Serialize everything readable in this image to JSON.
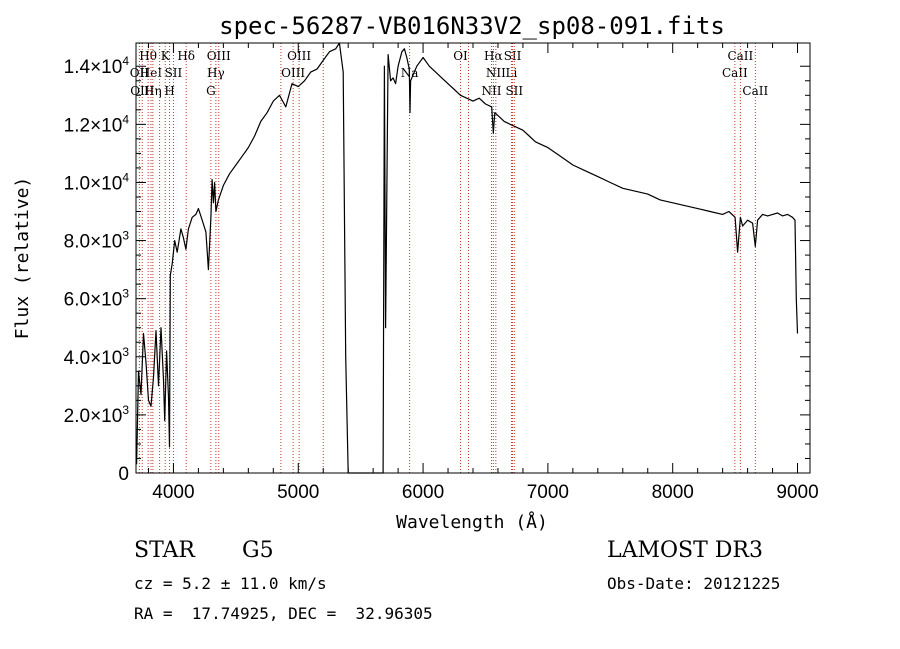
{
  "chart_data": {
    "type": "line",
    "title": "spec-56287-VB016N33V2_sp08-091.fits",
    "xlabel": "Wavelength (Å)",
    "ylabel": "Flux (relative)",
    "xlim": [
      3700,
      9100
    ],
    "ylim": [
      0,
      14800
    ],
    "xticks": [
      {
        "value": 4000,
        "label": "4000"
      },
      {
        "value": 5000,
        "label": "5000"
      },
      {
        "value": 6000,
        "label": "6000"
      },
      {
        "value": 7000,
        "label": "7000"
      },
      {
        "value": 8000,
        "label": "8000"
      },
      {
        "value": 9000,
        "label": "9000"
      }
    ],
    "yticks": [
      {
        "value": 0,
        "mant": "0",
        "exp": ""
      },
      {
        "value": 2000,
        "mant": "2.0×10",
        "exp": "3"
      },
      {
        "value": 4000,
        "mant": "4.0×10",
        "exp": "3"
      },
      {
        "value": 6000,
        "mant": "6.0×10",
        "exp": "3"
      },
      {
        "value": 8000,
        "mant": "8.0×10",
        "exp": "3"
      },
      {
        "value": 10000,
        "mant": "1.0×10",
        "exp": "4"
      },
      {
        "value": 12000,
        "mant": "1.2×10",
        "exp": "4"
      },
      {
        "value": 14000,
        "mant": "1.4×10",
        "exp": "4"
      }
    ],
    "series": [
      {
        "name": "flux",
        "x": [
          3705,
          3720,
          3740,
          3760,
          3780,
          3800,
          3820,
          3840,
          3860,
          3880,
          3900,
          3920,
          3930,
          3945,
          3960,
          3968,
          3975,
          3990,
          4010,
          4030,
          4060,
          4080,
          4100,
          4120,
          4150,
          4180,
          4200,
          4230,
          4260,
          4280,
          4300,
          4310,
          4320,
          4330,
          4340,
          4360,
          4400,
          4450,
          4500,
          4550,
          4600,
          4650,
          4700,
          4750,
          4800,
          4850,
          4900,
          4950,
          5000,
          5050,
          5100,
          5150,
          5200,
          5250,
          5300,
          5330,
          5360,
          5380,
          5400,
          5500,
          5600,
          5680,
          5690,
          5700,
          5720,
          5740,
          5760,
          5780,
          5800,
          5830,
          5850,
          5870,
          5890,
          5895,
          5900,
          5950,
          6000,
          6050,
          6100,
          6150,
          6200,
          6250,
          6300,
          6350,
          6400,
          6450,
          6500,
          6550,
          6563,
          6575,
          6600,
          6650,
          6700,
          6750,
          6800,
          6850,
          6900,
          6950,
          7000,
          7100,
          7200,
          7300,
          7400,
          7500,
          7600,
          7700,
          7800,
          7900,
          8000,
          8100,
          8200,
          8300,
          8400,
          8450,
          8500,
          8520,
          8542,
          8560,
          8580,
          8600,
          8640,
          8662,
          8680,
          8720,
          8760,
          8800,
          8840,
          8880,
          8920,
          8960,
          8980,
          8990,
          9000
        ],
        "y": [
          300,
          3500,
          2700,
          4800,
          3800,
          2500,
          2300,
          3300,
          4900,
          3000,
          5000,
          3200,
          1800,
          4200,
          2600,
          900,
          6800,
          7200,
          8000,
          7600,
          8400,
          8100,
          7700,
          8400,
          8800,
          8900,
          9100,
          8700,
          8300,
          7000,
          8800,
          10100,
          9300,
          10000,
          9000,
          9400,
          9900,
          10300,
          10600,
          10900,
          11200,
          11600,
          12100,
          12400,
          12800,
          13000,
          12600,
          13400,
          13300,
          13500,
          13800,
          13900,
          14200,
          14500,
          14600,
          14900,
          13800,
          4000,
          0,
          0,
          0,
          0,
          14000,
          5000,
          14400,
          13500,
          13600,
          13400,
          14000,
          14500,
          14600,
          14300,
          13900,
          12400,
          13500,
          14000,
          14300,
          14000,
          13800,
          13600,
          13400,
          13200,
          13000,
          12900,
          12800,
          12900,
          12700,
          12600,
          11700,
          12400,
          12300,
          12100,
          12000,
          11900,
          11800,
          11600,
          11400,
          11300,
          11200,
          10900,
          10600,
          10400,
          10200,
          10000,
          9800,
          9700,
          9600,
          9400,
          9300,
          9200,
          9100,
          9000,
          8900,
          9000,
          8800,
          7600,
          8800,
          8500,
          8600,
          8700,
          8600,
          7800,
          8700,
          8900,
          8850,
          8900,
          8950,
          8850,
          8900,
          8800,
          8700,
          6000,
          4800
        ]
      }
    ],
    "line_markers": [
      {
        "wavelength": 3727,
        "label": "OII",
        "row": 1
      },
      {
        "wavelength": 3750,
        "label": "OIII",
        "row": 2
      },
      {
        "wavelength": 3797,
        "label": "Hθ",
        "row": 0
      },
      {
        "wavelength": 3820,
        "label": "HeI",
        "row": 1
      },
      {
        "wavelength": 3835,
        "label": "Hη",
        "row": 2
      },
      {
        "wavelength": 3889,
        "label": "",
        "row": 0
      },
      {
        "wavelength": 3934,
        "label": "K",
        "row": 0
      },
      {
        "wavelength": 3969,
        "label": "H",
        "row": 2
      },
      {
        "wavelength": 4000,
        "label": "SII",
        "row": 1
      },
      {
        "wavelength": 4102,
        "label": "Hδ",
        "row": 0
      },
      {
        "wavelength": 4300,
        "label": "G",
        "row": 2
      },
      {
        "wavelength": 4340,
        "label": "Hγ",
        "row": 1
      },
      {
        "wavelength": 4363,
        "label": "OIII",
        "row": 0
      },
      {
        "wavelength": 4861,
        "label": "",
        "row": 0
      },
      {
        "wavelength": 4959,
        "label": "OIII",
        "row": 1
      },
      {
        "wavelength": 5007,
        "label": "OIII",
        "row": 0
      },
      {
        "wavelength": 5200,
        "label": "",
        "row": 0
      },
      {
        "wavelength": 5892,
        "label": "Na",
        "row": 1
      },
      {
        "wavelength": 6300,
        "label": "OI",
        "row": 0
      },
      {
        "wavelength": 6364,
        "label": "",
        "row": 0
      },
      {
        "wavelength": 6548,
        "label": "NII",
        "row": 2
      },
      {
        "wavelength": 6563,
        "label": "Hα",
        "row": 0
      },
      {
        "wavelength": 6583,
        "label": "NII",
        "row": 1
      },
      {
        "wavelength": 6708,
        "label": "Li",
        "row": 1
      },
      {
        "wavelength": 6717,
        "label": "SII",
        "row": 0
      },
      {
        "wavelength": 6731,
        "label": "SII",
        "row": 2
      },
      {
        "wavelength": 8498,
        "label": "CaII",
        "row": 1
      },
      {
        "wavelength": 8542,
        "label": "CaII",
        "row": 0
      },
      {
        "wavelength": 8662,
        "label": "CaII",
        "row": 2
      }
    ]
  },
  "info": {
    "object_class": "STAR",
    "subclass": "G5",
    "survey": "LAMOST DR3",
    "redshift": "cz = 5.2 ± 11.0 km/s",
    "obs_date": "Obs-Date: 20121225",
    "coords": "RA =  17.74925, DEC =  32.96305"
  }
}
